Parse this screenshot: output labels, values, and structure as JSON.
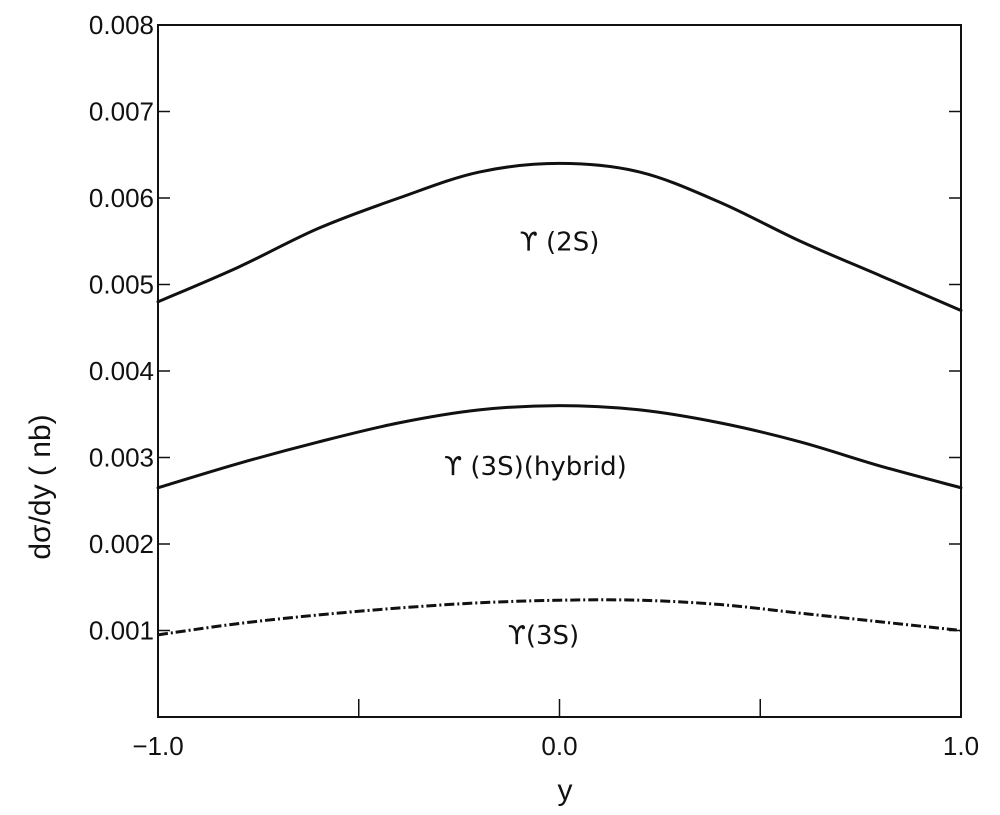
{
  "chart_data": {
    "type": "line",
    "xlabel": "y",
    "ylabel": "dσ/dy ( nb)",
    "xlim": [
      -1.0,
      1.0
    ],
    "ylim": [
      0.0,
      0.008
    ],
    "x_tick_labels": [
      "−1.0",
      "0.0",
      "1.0"
    ],
    "x_tick_values": [
      -1.0,
      0.0,
      1.0
    ],
    "x_minor_ticks": [
      -0.5,
      0.5
    ],
    "y_tick_labels": [
      "0.001",
      "0.002",
      "0.003",
      "0.004",
      "0.005",
      "0.006",
      "0.007",
      "0.008"
    ],
    "y_tick_values": [
      0.001,
      0.002,
      0.003,
      0.004,
      0.005,
      0.006,
      0.007,
      0.008
    ],
    "grid": false,
    "series": [
      {
        "name": "ϒ (2S)",
        "style": "solid",
        "x": [
          -1.0,
          -0.8,
          -0.6,
          -0.4,
          -0.2,
          0.0,
          0.2,
          0.4,
          0.6,
          0.8,
          1.0
        ],
        "y": [
          0.0048,
          0.0052,
          0.00565,
          0.006,
          0.0063,
          0.0064,
          0.0063,
          0.00595,
          0.0055,
          0.0051,
          0.0047
        ]
      },
      {
        "name": "ϒ (3S)(hybrid)",
        "style": "solid",
        "x": [
          -1.0,
          -0.8,
          -0.6,
          -0.4,
          -0.2,
          0.0,
          0.2,
          0.4,
          0.6,
          0.8,
          1.0
        ],
        "y": [
          0.00265,
          0.00293,
          0.00318,
          0.0034,
          0.00355,
          0.0036,
          0.00355,
          0.0034,
          0.00318,
          0.0029,
          0.00265
        ]
      },
      {
        "name": "ϒ(3S)",
        "style": "dashdot",
        "x": [
          -1.0,
          -0.8,
          -0.6,
          -0.4,
          -0.2,
          0.0,
          0.2,
          0.4,
          0.6,
          0.8,
          1.0
        ],
        "y": [
          0.00095,
          0.00108,
          0.00118,
          0.00126,
          0.00132,
          0.00135,
          0.00135,
          0.0013,
          0.0012,
          0.0011,
          0.001
        ]
      }
    ],
    "annotations": [
      {
        "text": "ϒ (2S)",
        "x": 0.0,
        "y": 0.0055
      },
      {
        "text": "ϒ (3S)(hybrid)",
        "x": -0.06,
        "y": 0.0029
      },
      {
        "text": "ϒ(3S)",
        "x": -0.04,
        "y": 0.00095
      }
    ]
  }
}
